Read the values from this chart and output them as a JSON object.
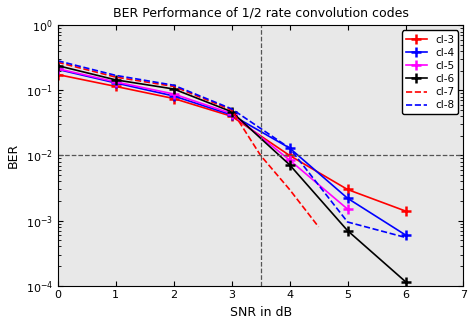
{
  "title": "BER Performance of 1/2 rate convolution codes",
  "xlabel": "SNR in dB",
  "ylabel": "BER",
  "xlim": [
    0,
    7
  ],
  "ylim_log": [
    -4,
    0
  ],
  "reference_line_ber": 0.01,
  "reference_snr": 3.5,
  "bg_color": "#e8e8e8",
  "series": [
    {
      "label": "cl-3",
      "color": "red",
      "linestyle": "-",
      "marker": "+",
      "snr": [
        0,
        1,
        2,
        3,
        4,
        5,
        6
      ],
      "ber": [
        0.175,
        0.115,
        0.075,
        0.04,
        0.01,
        0.003,
        0.0014
      ]
    },
    {
      "label": "cl-4",
      "color": "blue",
      "linestyle": "-",
      "marker": "+",
      "snr": [
        0,
        1,
        2,
        3,
        4,
        5,
        6
      ],
      "ber": [
        0.21,
        0.13,
        0.082,
        0.042,
        0.013,
        0.0022,
        0.0006
      ]
    },
    {
      "label": "cl-5",
      "color": "magenta",
      "linestyle": "-",
      "marker": "+",
      "snr": [
        0,
        1,
        2,
        3,
        4,
        5
      ],
      "ber": [
        0.215,
        0.135,
        0.088,
        0.044,
        0.0085,
        0.0015
      ]
    },
    {
      "label": "cl-6",
      "color": "black",
      "linestyle": "-",
      "marker": "+",
      "snr": [
        0,
        1,
        2,
        3,
        4,
        5,
        6
      ],
      "ber": [
        0.24,
        0.145,
        0.105,
        0.047,
        0.0072,
        0.0007,
        0.000115
      ]
    },
    {
      "label": "cl-7",
      "color": "red",
      "linestyle": "--",
      "marker": null,
      "snr": [
        0,
        1,
        2,
        3,
        3.5,
        4,
        4.5
      ],
      "ber": [
        0.27,
        0.16,
        0.115,
        0.05,
        0.01,
        0.003,
        0.0008
      ]
    },
    {
      "label": "cl-8",
      "color": "blue",
      "linestyle": "--",
      "marker": null,
      "snr": [
        0,
        1,
        2,
        3,
        4,
        5,
        6
      ],
      "ber": [
        0.285,
        0.17,
        0.12,
        0.052,
        0.013,
        0.00095,
        0.00055
      ]
    }
  ]
}
